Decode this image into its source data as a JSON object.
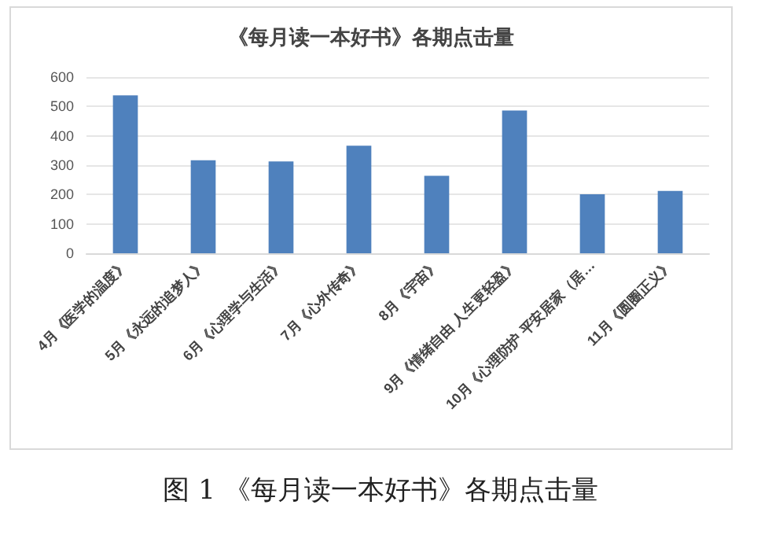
{
  "chart_data": {
    "type": "bar",
    "title": "《每月读一本好书》各期点击量",
    "categories": [
      "4月《医学的温度》",
      "5月《永远的追梦人》",
      "6月《心理学与生活》",
      "7月《心外传奇》",
      "8月《宇宙》",
      "9月《情绪自由 人生更轻盈》",
      "10月《心理防护 平安居家（居…",
      "11月《圆圈正义》"
    ],
    "values": [
      538,
      317,
      313,
      366,
      264,
      486,
      201,
      212
    ],
    "color": "#4f81bd",
    "ylim": [
      0,
      600
    ],
    "yticks": [
      0,
      100,
      200,
      300,
      400,
      500,
      600
    ],
    "grid": "y",
    "annotations": [
      "图 1 《每月读一本好书》各期点击量"
    ]
  }
}
